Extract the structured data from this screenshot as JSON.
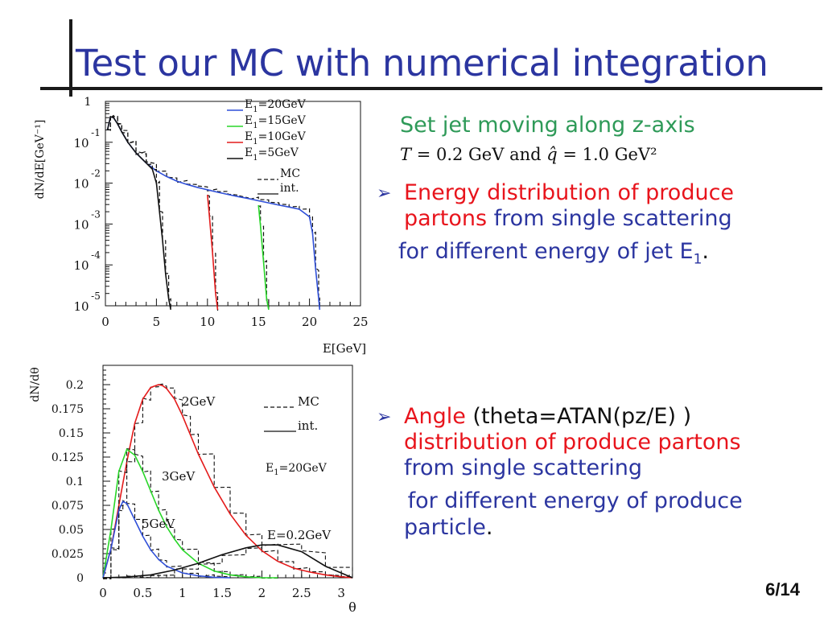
{
  "slide": {
    "title": "Test our MC with numerical integration",
    "setup_line": "Set jet moving along z-axis",
    "formula": {
      "t_sym": "T",
      "t_eq": " = 0.2 GeV and ",
      "q_sym": "q̂",
      "q_eq": " = 1.0 GeV²"
    },
    "bullet1": {
      "red_a": "Energy distribution of produce",
      "red_b": "partons",
      "blue_b": " from single scattering",
      "blue_c": "for different energy of jet E",
      "sub_c": "1",
      "end_c": "."
    },
    "bullet2": {
      "red_a": "Angle",
      "blk_a": " (theta=ATAN(pz/E) )",
      "red_b": "distribution of produce partons",
      "blue_c": "from single scattering",
      "blue_d": " for different energy of produce",
      "blue_e": "particle",
      "end_e": "."
    },
    "page": "6/14"
  },
  "chart_data": [
    {
      "type": "line",
      "ylabel": "dN/dE[GeV⁻¹]",
      "xlabel": "E[GeV]",
      "xlim": [
        0,
        25
      ],
      "ylim": [
        1e-05,
        1
      ],
      "log_y": true,
      "x_ticks": [
        "0",
        "5",
        "10",
        "15",
        "20",
        "25"
      ],
      "y_ticks": [
        {
          "base": "",
          "exp": "",
          "text": "1"
        },
        {
          "base": "10",
          "exp": "-1"
        },
        {
          "base": "10",
          "exp": "-2"
        },
        {
          "base": "10",
          "exp": "-3"
        },
        {
          "base": "10",
          "exp": "-4"
        },
        {
          "base": "10",
          "exp": "-5"
        }
      ],
      "legend": [
        {
          "pre": "E",
          "sub": "1",
          "post": "=20GeV",
          "color": "#2f4fd8"
        },
        {
          "pre": "E",
          "sub": "1",
          "post": "=15GeV",
          "color": "#28d628"
        },
        {
          "pre": "E",
          "sub": "1",
          "post": "=10GeV",
          "color": "#e41b1b"
        },
        {
          "pre": "E",
          "sub": "1",
          "post": "=5GeV",
          "color": "#111111"
        }
      ],
      "line_style_legend": [
        {
          "label": "MC",
          "style": "dashed"
        },
        {
          "label": "int.",
          "style": "solid"
        }
      ],
      "legend_position": "top-right",
      "series": [
        {
          "color": "#e41b1b",
          "x": [
            10,
            10.2,
            10.5,
            10.8,
            11.0
          ],
          "y": [
            0.0052,
            0.0015,
            0.0002,
            2e-05,
            8e-06
          ]
        },
        {
          "color": "#28d628",
          "x": [
            15,
            15.2,
            15.5,
            15.8,
            16.0
          ],
          "y": [
            0.0029,
            0.0009,
            0.00012,
            1.5e-05,
            8e-06
          ]
        },
        {
          "color": "#2f4fd8",
          "x": [
            0.2,
            0.5,
            0.8,
            1.2,
            1.6,
            2.2,
            3,
            4,
            5,
            6,
            7,
            8,
            9,
            10,
            11,
            12,
            13,
            14,
            15,
            16,
            17,
            18,
            19,
            20,
            20.3,
            20.6,
            20.9,
            21.0
          ],
          "y": [
            0.2,
            0.42,
            0.4,
            0.28,
            0.18,
            0.1,
            0.055,
            0.031,
            0.02,
            0.0145,
            0.0112,
            0.0093,
            0.0079,
            0.0069,
            0.006,
            0.0053,
            0.0047,
            0.0042,
            0.0037,
            0.0033,
            0.0029,
            0.0026,
            0.0023,
            0.0015,
            0.0006,
            8e-05,
            1.5e-05,
            8e-06
          ]
        },
        {
          "color": "#111111",
          "x": [
            0.2,
            0.5,
            0.8,
            1.2,
            1.6,
            2.2,
            3,
            4,
            4.6,
            5.0,
            5.3,
            5.6,
            5.9,
            6.2,
            6.4
          ],
          "y": [
            0.2,
            0.42,
            0.4,
            0.28,
            0.18,
            0.1,
            0.055,
            0.031,
            0.022,
            0.01,
            0.002,
            0.0004,
            6e-05,
            1.5e-05,
            8e-06
          ]
        }
      ]
    },
    {
      "type": "line",
      "ylabel": "dN/dθ",
      "xlabel": "θ",
      "xlim": [
        0,
        3.14
      ],
      "ylim": [
        0,
        0.22
      ],
      "x_ticks": [
        "0",
        "0.5",
        "1",
        "1.5",
        "2",
        "2.5",
        "3"
      ],
      "x_tick_values": [
        0,
        0.5,
        1,
        1.5,
        2,
        2.5,
        3
      ],
      "y_ticks": [
        "0",
        "0.025",
        "0.05",
        "0.075",
        "0.1",
        "0.125",
        "0.15",
        "0.175",
        "0.2"
      ],
      "y_tick_values": [
        0,
        0.025,
        0.05,
        0.075,
        0.1,
        0.125,
        0.15,
        0.175,
        0.2
      ],
      "line_style_legend": [
        {
          "label": "MC",
          "style": "dashed"
        },
        {
          "label": "int.",
          "style": "solid"
        }
      ],
      "annotation": {
        "pre": "E",
        "sub": "1",
        "post": "=20GeV"
      },
      "curve_labels": [
        "2GeV",
        "3GeV",
        "5GeV",
        "E=0.2GeV"
      ],
      "series": [
        {
          "name": "2GeV",
          "color": "#e41b1b",
          "x": [
            0,
            0.1,
            0.2,
            0.3,
            0.4,
            0.5,
            0.6,
            0.7,
            0.75,
            0.8,
            0.9,
            1.0,
            1.1,
            1.2,
            1.4,
            1.6,
            1.8,
            2.0,
            2.2,
            2.4,
            2.6,
            2.8,
            3.0,
            3.14
          ],
          "y": [
            0,
            0.03,
            0.075,
            0.12,
            0.16,
            0.185,
            0.197,
            0.2,
            0.199,
            0.196,
            0.185,
            0.168,
            0.148,
            0.128,
            0.094,
            0.066,
            0.044,
            0.028,
            0.017,
            0.01,
            0.006,
            0.003,
            0.001,
            0
          ]
        },
        {
          "name": "3GeV",
          "color": "#28d628",
          "x": [
            0,
            0.1,
            0.2,
            0.3,
            0.4,
            0.5,
            0.6,
            0.7,
            0.8,
            0.9,
            1.0,
            1.2,
            1.4,
            1.6,
            1.8,
            2.0,
            2.2
          ],
          "y": [
            0,
            0.05,
            0.11,
            0.133,
            0.127,
            0.11,
            0.09,
            0.07,
            0.053,
            0.04,
            0.029,
            0.015,
            0.007,
            0.003,
            0.001,
            0,
            0
          ]
        },
        {
          "name": "5GeV",
          "color": "#2f4fd8",
          "x": [
            0,
            0.1,
            0.2,
            0.25,
            0.3,
            0.4,
            0.5,
            0.6,
            0.7,
            0.8,
            1.0,
            1.2,
            1.4,
            1.6
          ],
          "y": [
            0,
            0.03,
            0.07,
            0.079,
            0.077,
            0.06,
            0.043,
            0.029,
            0.019,
            0.012,
            0.005,
            0.002,
            0.0005,
            0
          ]
        },
        {
          "name": "E=0.2GeV",
          "color": "#111111",
          "x": [
            0,
            0.3,
            0.6,
            0.9,
            1.2,
            1.5,
            1.8,
            2.0,
            2.2,
            2.5,
            2.8,
            3.14
          ],
          "y": [
            0,
            0.0008,
            0.003,
            0.008,
            0.015,
            0.024,
            0.031,
            0.034,
            0.034,
            0.027,
            0.012,
            0
          ]
        }
      ]
    }
  ]
}
